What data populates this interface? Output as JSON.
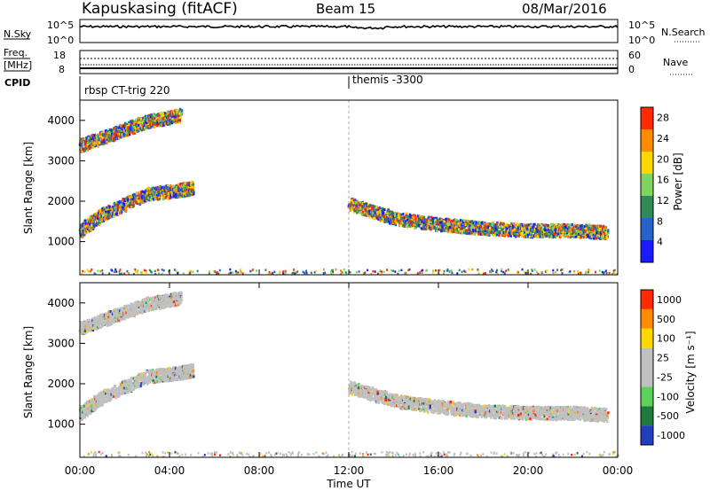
{
  "header": {
    "station": "Kapuskasing (fitACF)",
    "beam": "Beam 15",
    "date": "08/Mar/2016"
  },
  "top_panels": {
    "nsky_label": "N.Sky",
    "nsky_ticks": [
      "10^5",
      "10^0"
    ],
    "nsearch_label": "N.Search",
    "nsearch_ticks": [
      "10^5",
      "10^0"
    ],
    "freq_label": "Freq.",
    "freq_unit": "[MHz]",
    "freq_ticks": [
      "18",
      "8"
    ],
    "nave_label": "Nave",
    "nave_ticks": [
      "60",
      "0"
    ],
    "cpid_label": "CPID",
    "cpid_entries": [
      {
        "time": "00:00",
        "text": "rbsp CT-trig 220"
      },
      {
        "time": "12:00",
        "text": "themis -3300"
      }
    ]
  },
  "x_axis": {
    "label": "Time UT",
    "ticks": [
      "00:00",
      "04:00",
      "08:00",
      "12:00",
      "16:00",
      "20:00",
      "00:00"
    ],
    "range_hours": [
      0,
      24
    ]
  },
  "chart_data": [
    {
      "type": "heatmap",
      "name": "power",
      "ylabel": "Slant Range [km]",
      "yticks": [
        "1000",
        "2000",
        "3000",
        "4000"
      ],
      "ylim": [
        180,
        4500
      ],
      "colorbar_label": "Power [dB]",
      "colorbar_ticks": [
        "4",
        "8",
        "12",
        "16",
        "20",
        "24",
        "28"
      ],
      "colorbar_range": [
        0,
        30
      ],
      "colors": [
        "#1a1aff",
        "#2563c8",
        "#2e8b57",
        "#7fd55e",
        "#ffd700",
        "#ff8c00",
        "#ff2a00"
      ],
      "features": [
        {
          "desc_id": "lower-band",
          "t": [
            0.0,
            1.0,
            3.0,
            4.5,
            5.0
          ],
          "range": [
            1300,
            1700,
            2200,
            2300,
            2350
          ],
          "level_db": 14
        },
        {
          "desc_id": "upper-band",
          "t": [
            0.0,
            1.5,
            3.0,
            4.5
          ],
          "range": [
            3400,
            3700,
            4000,
            4150
          ],
          "level_db": 10
        },
        {
          "desc_id": "evening-band",
          "t": [
            12.0,
            14.0,
            16.0,
            18.0,
            20.0,
            22.0,
            23.5
          ],
          "range": [
            1950,
            1600,
            1450,
            1350,
            1300,
            1300,
            1250
          ],
          "level_db": 20
        }
      ]
    },
    {
      "type": "heatmap",
      "name": "velocity",
      "ylabel": "Slant Range [km]",
      "yticks": [
        "1000",
        "2000",
        "3000",
        "4000"
      ],
      "ylim": [
        180,
        4500
      ],
      "colorbar_label": "Velocity [m s⁻¹]",
      "colorbar_ticks": [
        "1000",
        "500",
        "100",
        "25",
        "-25",
        "-100",
        "-500",
        "-1000"
      ],
      "colors": [
        "#1f3fbf",
        "#1e7a3a",
        "#5bd05b",
        "#c0c0c0",
        "#c0c0c0",
        "#ffd700",
        "#ff8c00",
        "#ff2a00"
      ],
      "features": [
        {
          "desc_id": "lower-band",
          "t": [
            0.0,
            1.0,
            3.0,
            4.5,
            5.0
          ],
          "range": [
            1300,
            1700,
            2200,
            2300,
            2350
          ],
          "level_ms": 0
        },
        {
          "desc_id": "upper-band",
          "t": [
            0.0,
            1.5,
            3.0,
            4.5
          ],
          "range": [
            3400,
            3700,
            4000,
            4150
          ],
          "level_ms": 0
        },
        {
          "desc_id": "evening-band",
          "t": [
            12.0,
            14.0,
            16.0,
            18.0,
            20.0,
            22.0,
            23.5
          ],
          "range": [
            1950,
            1600,
            1450,
            1350,
            1300,
            1300,
            1250
          ],
          "level_ms": 0
        }
      ]
    }
  ]
}
